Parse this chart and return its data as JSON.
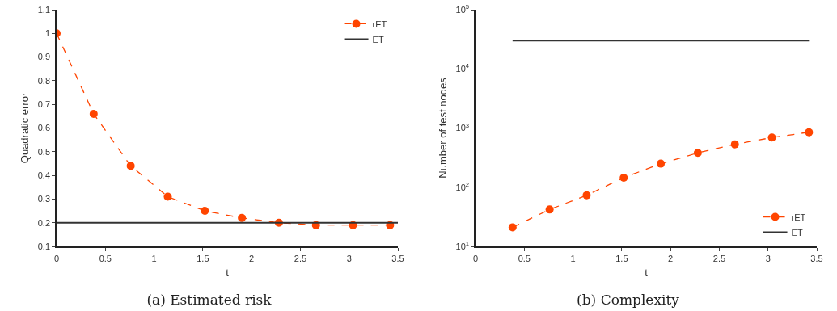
{
  "chart_data": [
    {
      "type": "line",
      "title": "(a) Estimated risk",
      "xlabel": "t",
      "ylabel": "Quadratic error",
      "x": [
        0,
        0.38,
        0.76,
        1.14,
        1.52,
        1.9,
        2.28,
        2.66,
        3.04,
        3.42
      ],
      "series": [
        {
          "name": "rET",
          "color": "#ff4500",
          "values": [
            1.0,
            0.66,
            0.44,
            0.31,
            0.25,
            0.22,
            0.2,
            0.19,
            0.19,
            0.19
          ],
          "marker": "circle",
          "line_style": "dashed"
        },
        {
          "name": "ET",
          "color": "#333333",
          "x": [
            0,
            3.5
          ],
          "values": [
            0.2,
            0.2
          ],
          "marker": "none",
          "line_style": "solid"
        }
      ],
      "xlim": [
        0,
        3.5
      ],
      "xticks": [
        0,
        0.5,
        1,
        1.5,
        2,
        2.5,
        3,
        3.5
      ],
      "ylim": [
        0.1,
        1.1
      ],
      "yticks": [
        0.1,
        0.2,
        0.3,
        0.4,
        0.5,
        0.6,
        0.7,
        0.8,
        0.9,
        1,
        1.1
      ],
      "grid": false,
      "legend": "top right"
    },
    {
      "type": "line",
      "title": "(b) Complexity",
      "xlabel": "t",
      "ylabel": "Number of test nodes",
      "x": [
        0.38,
        0.76,
        1.14,
        1.52,
        1.9,
        2.28,
        2.66,
        3.04,
        3.42
      ],
      "series": [
        {
          "name": "rET",
          "color": "#ff4500",
          "values": [
            21,
            42,
            73,
            145,
            250,
            380,
            530,
            690,
            850
          ],
          "marker": "circle",
          "line_style": "dashed"
        },
        {
          "name": "ET",
          "color": "#333333",
          "x": [
            0.38,
            3.42
          ],
          "values": [
            30000,
            30000
          ],
          "marker": "none",
          "line_style": "solid"
        }
      ],
      "xlim": [
        0,
        3.5
      ],
      "xticks": [
        0,
        0.5,
        1,
        1.5,
        2,
        2.5,
        3,
        3.5
      ],
      "ylim": [
        10,
        100000
      ],
      "yticks": [
        {
          "value": 10,
          "label": "10$^{1}$"
        },
        {
          "value": 100,
          "label": "10$^{2}$"
        },
        {
          "value": 1000,
          "label": "10$^{3}$"
        },
        {
          "value": 10000,
          "label": "10$^{4}$"
        },
        {
          "value": 100000,
          "label": "10$^{5}$"
        }
      ],
      "log": "y",
      "grid": false,
      "legend": "bottom right"
    }
  ]
}
